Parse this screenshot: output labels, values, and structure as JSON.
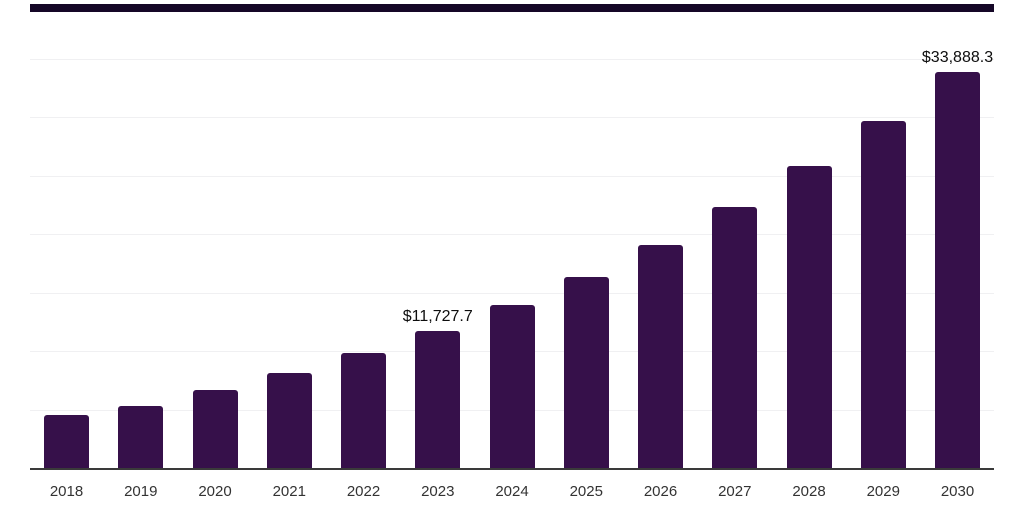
{
  "chart_data": {
    "type": "bar",
    "title": "",
    "xlabel": "",
    "ylabel": "",
    "categories": [
      "2018",
      "2019",
      "2020",
      "2021",
      "2022",
      "2023",
      "2024",
      "2025",
      "2026",
      "2027",
      "2028",
      "2029",
      "2030"
    ],
    "values": [
      4500,
      5300,
      6650,
      8100,
      9800,
      11727.7,
      13900,
      16350,
      19100,
      22300,
      25800,
      29650,
      33888.3
    ],
    "data_labels": [
      "",
      "",
      "",
      "",
      "",
      "$11,727.7",
      "",
      "",
      "",
      "",
      "",
      "",
      "$33,888.3"
    ],
    "ylim": [
      0,
      40000
    ],
    "gridline_step": 5000,
    "grid": "horizontal-only",
    "legend": "none",
    "y_axis_labels_visible": false
  },
  "colors": {
    "bar_fill": "#36104A",
    "top_border": "#150727",
    "gridline": "#f0f0f2",
    "axis_line": "#3a3a3a",
    "tick_text": "#333333",
    "label_text": "#0d0d0d",
    "background": "#ffffff"
  }
}
